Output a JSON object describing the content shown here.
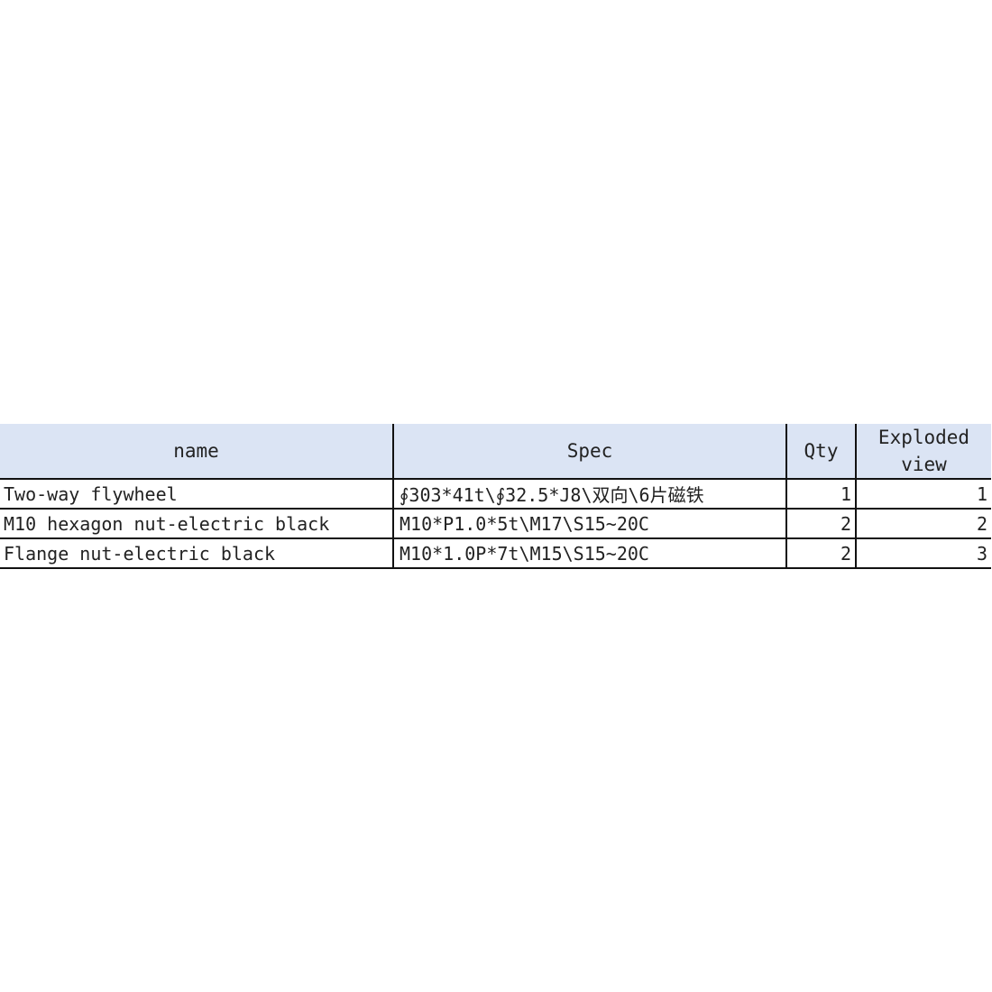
{
  "table": {
    "headers": [
      "name",
      "Spec",
      "Qty",
      "Exploded view"
    ],
    "rows": [
      {
        "name": "Two-way flywheel",
        "spec": "∮303*41t\\∮32.5*J8\\双向\\6片磁铁",
        "qty": "1",
        "exploded_view": "1"
      },
      {
        "name": "M10 hexagon nut-electric black",
        "spec": "M10*P1.0*5t\\M17\\S15~20C",
        "qty": "2",
        "exploded_view": "2"
      },
      {
        "name": "Flange nut-electric black",
        "spec": "M10*1.0P*7t\\M15\\S15~20C",
        "qty": "2",
        "exploded_view": "3"
      }
    ]
  },
  "colors": {
    "header_bg": "#dbe4f4",
    "border": "#111111"
  }
}
